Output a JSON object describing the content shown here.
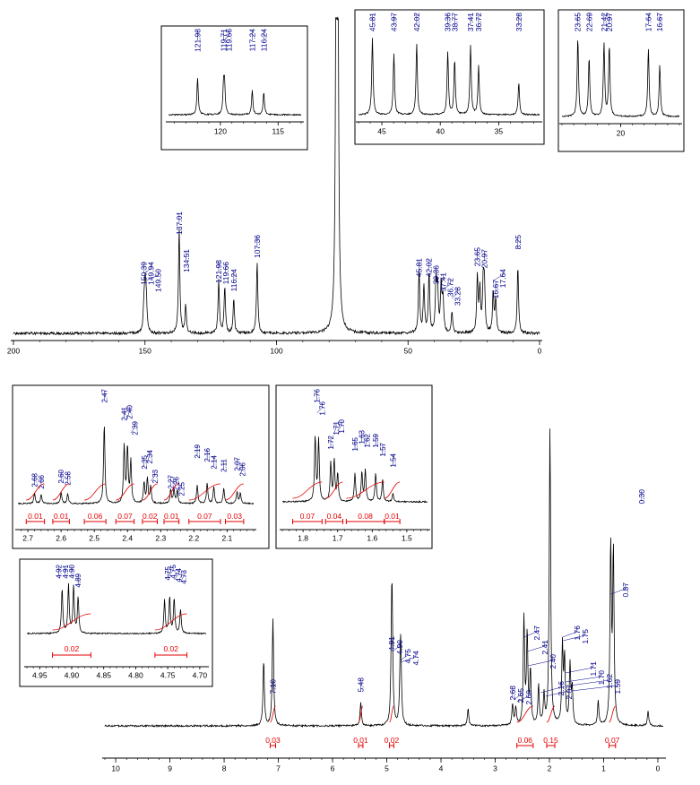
{
  "colors": {
    "spectrum": "#000000",
    "peak_label": "#00008B",
    "integral": "#E60000",
    "frame": "#000000"
  },
  "chart_data": [
    {
      "id": "c13_main",
      "type": "line",
      "xlim": [
        200,
        0
      ],
      "xticks": [
        200,
        150,
        100,
        50,
        0
      ],
      "peak_labels": [
        "150.39",
        "149.94",
        "149.50",
        "137.01",
        "134.51",
        "121.98",
        "119.66",
        "116.24",
        "107.36",
        "45.81",
        "42.02",
        "39.36",
        "37.41",
        "36.72",
        "33.28",
        "23.65",
        "20.97",
        "16.67",
        "17.64",
        "8.25"
      ],
      "peaks": [
        {
          "x": 150.39,
          "h": 0.08
        },
        {
          "x": 149.94,
          "h": 0.14
        },
        {
          "x": 149.5,
          "h": 0.1
        },
        {
          "x": 137.01,
          "h": 0.34
        },
        {
          "x": 134.51,
          "h": 0.09
        },
        {
          "x": 121.98,
          "h": 0.17
        },
        {
          "x": 119.66,
          "h": 0.15
        },
        {
          "x": 116.24,
          "h": 0.11
        },
        {
          "x": 107.36,
          "h": 0.23
        },
        {
          "x": 77.3,
          "h": 1.0
        },
        {
          "x": 77.0,
          "h": 1.0
        },
        {
          "x": 76.7,
          "h": 1.0
        },
        {
          "x": 45.81,
          "h": 0.2
        },
        {
          "x": 43.97,
          "h": 0.15
        },
        {
          "x": 42.02,
          "h": 0.19
        },
        {
          "x": 39.36,
          "h": 0.16
        },
        {
          "x": 38.77,
          "h": 0.14
        },
        {
          "x": 37.41,
          "h": 0.15
        },
        {
          "x": 36.72,
          "h": 0.11
        },
        {
          "x": 33.28,
          "h": 0.07
        },
        {
          "x": 23.65,
          "h": 0.18
        },
        {
          "x": 22.69,
          "h": 0.14
        },
        {
          "x": 21.42,
          "h": 0.15
        },
        {
          "x": 20.97,
          "h": 0.15
        },
        {
          "x": 17.64,
          "h": 0.13
        },
        {
          "x": 16.67,
          "h": 0.11
        },
        {
          "x": 8.25,
          "h": 0.22
        }
      ]
    },
    {
      "id": "c13_inset_a",
      "type": "line",
      "xlim": [
        124.5,
        113
      ],
      "xticks": [
        120,
        115
      ],
      "peak_labels": [
        "121.98",
        "119.71",
        "119.66",
        "117.24",
        "116.24"
      ],
      "peaks": [
        {
          "x": 121.98,
          "h": 0.95
        },
        {
          "x": 119.71,
          "h": 0.75
        },
        {
          "x": 119.66,
          "h": 0.8
        },
        {
          "x": 117.24,
          "h": 0.62
        },
        {
          "x": 116.24,
          "h": 0.58
        }
      ]
    },
    {
      "id": "c13_inset_b",
      "type": "line",
      "xlim": [
        47,
        31.5
      ],
      "xticks": [
        45,
        40,
        35
      ],
      "peak_labels": [
        "45.81",
        "43.97",
        "42.02",
        "39.36",
        "38.77",
        "37.41",
        "36.72",
        "33.28"
      ],
      "peaks": [
        {
          "x": 45.81,
          "h": 0.95
        },
        {
          "x": 43.97,
          "h": 0.75
        },
        {
          "x": 42.02,
          "h": 0.88
        },
        {
          "x": 39.36,
          "h": 0.78
        },
        {
          "x": 38.77,
          "h": 0.68
        },
        {
          "x": 37.41,
          "h": 0.86
        },
        {
          "x": 36.72,
          "h": 0.6
        },
        {
          "x": 33.28,
          "h": 0.4
        }
      ]
    },
    {
      "id": "c13_inset_c",
      "type": "line",
      "xlim": [
        25,
        15
      ],
      "xticks": [
        20
      ],
      "peak_labels": [
        "23.65",
        "22.69",
        "21.42",
        "20.97",
        "17.64",
        "16.67"
      ],
      "peaks": [
        {
          "x": 23.65,
          "h": 0.95
        },
        {
          "x": 22.69,
          "h": 0.72
        },
        {
          "x": 21.42,
          "h": 0.88
        },
        {
          "x": 20.97,
          "h": 0.85
        },
        {
          "x": 17.64,
          "h": 0.82
        },
        {
          "x": 16.67,
          "h": 0.62
        }
      ]
    },
    {
      "id": "h1_main",
      "type": "line",
      "xlim": [
        10.2,
        -0.1
      ],
      "xticks": [
        10,
        9,
        8,
        7,
        6,
        5,
        4,
        3,
        2,
        1,
        0
      ],
      "peak_labels": [
        "7.10",
        "5.48",
        "4.91",
        "4.90",
        "4.75",
        "4.74",
        "2.68",
        "2.65",
        "2.60",
        "2.47",
        "2.41",
        "2.40",
        "2.16",
        "2.07",
        "1.76",
        "1.75",
        "1.71",
        "1.70",
        "1.62",
        "1.59",
        "0.87",
        "0.30"
      ],
      "integrals": [
        "0.03",
        "0.01",
        "0.02",
        "0.06",
        "0.15",
        "0.07"
      ],
      "peaks": [
        {
          "x": 7.27,
          "h": 0.22
        },
        {
          "x": 7.1,
          "h": 0.36
        },
        {
          "x": 5.48,
          "h": 0.08
        },
        {
          "x": 4.91,
          "h": 0.28
        },
        {
          "x": 4.9,
          "h": 0.27
        },
        {
          "x": 4.75,
          "h": 0.18
        },
        {
          "x": 4.74,
          "h": 0.16
        },
        {
          "x": 3.5,
          "h": 0.06
        },
        {
          "x": 2.68,
          "h": 0.07
        },
        {
          "x": 2.62,
          "h": 0.06
        },
        {
          "x": 2.47,
          "h": 0.36
        },
        {
          "x": 2.41,
          "h": 0.3
        },
        {
          "x": 2.35,
          "h": 0.18
        },
        {
          "x": 2.2,
          "h": 0.13
        },
        {
          "x": 2.1,
          "h": 0.1
        },
        {
          "x": 1.99,
          "h": 1.0
        },
        {
          "x": 1.76,
          "h": 0.26
        },
        {
          "x": 1.72,
          "h": 0.22
        },
        {
          "x": 1.62,
          "h": 0.2
        },
        {
          "x": 1.58,
          "h": 0.12
        },
        {
          "x": 1.1,
          "h": 0.08
        },
        {
          "x": 0.87,
          "h": 0.6
        },
        {
          "x": 0.82,
          "h": 0.58
        },
        {
          "x": 0.18,
          "h": 0.05
        }
      ]
    },
    {
      "id": "h1_inset_a",
      "type": "line",
      "xlim": [
        2.73,
        2.02
      ],
      "xticks": [
        2.7,
        2.6,
        2.5,
        2.4,
        2.3,
        2.2,
        2.1
      ],
      "peak_labels": [
        "2.68",
        "2.66",
        "2.60",
        "2.58",
        "2.47",
        "2.41",
        "2.40",
        "2.39",
        "2.35",
        "2.34",
        "2.33",
        "2.27",
        "2.26",
        "2.25",
        "2.19",
        "2.16",
        "2.14",
        "2.11",
        "2.07",
        "2.06"
      ],
      "integrals": [
        "0.01",
        "0.01",
        "0.06",
        "0.07",
        "0.02",
        "0.01",
        "0.07",
        "0.03"
      ],
      "peaks": [
        {
          "x": 2.68,
          "h": 0.12
        },
        {
          "x": 2.66,
          "h": 0.11
        },
        {
          "x": 2.6,
          "h": 0.13
        },
        {
          "x": 2.58,
          "h": 0.12
        },
        {
          "x": 2.47,
          "h": 0.95
        },
        {
          "x": 2.41,
          "h": 0.68
        },
        {
          "x": 2.4,
          "h": 0.66
        },
        {
          "x": 2.39,
          "h": 0.5
        },
        {
          "x": 2.35,
          "h": 0.25
        },
        {
          "x": 2.34,
          "h": 0.3
        },
        {
          "x": 2.33,
          "h": 0.2
        },
        {
          "x": 2.27,
          "h": 0.16
        },
        {
          "x": 2.26,
          "h": 0.17
        },
        {
          "x": 2.25,
          "h": 0.15
        },
        {
          "x": 2.19,
          "h": 0.22
        },
        {
          "x": 2.16,
          "h": 0.24
        },
        {
          "x": 2.14,
          "h": 0.2
        },
        {
          "x": 2.11,
          "h": 0.18
        },
        {
          "x": 2.07,
          "h": 0.14
        },
        {
          "x": 2.06,
          "h": 0.12
        }
      ]
    },
    {
      "id": "h1_inset_b",
      "type": "line",
      "xlim": [
        1.86,
        1.44
      ],
      "xticks": [
        1.8,
        1.7,
        1.6,
        1.5
      ],
      "peak_labels": [
        "1.76",
        "1.76",
        "1.72",
        "1.71",
        "1.70",
        "1.65",
        "1.63",
        "1.62",
        "1.59",
        "1.57",
        "1.54"
      ],
      "integrals": [
        "0.07",
        "0.04",
        "0.08",
        "0.01"
      ],
      "peaks": [
        {
          "x": 1.765,
          "h": 0.92
        },
        {
          "x": 1.755,
          "h": 0.88
        },
        {
          "x": 1.72,
          "h": 0.55
        },
        {
          "x": 1.71,
          "h": 0.58
        },
        {
          "x": 1.7,
          "h": 0.4
        },
        {
          "x": 1.65,
          "h": 0.4
        },
        {
          "x": 1.63,
          "h": 0.42
        },
        {
          "x": 1.62,
          "h": 0.44
        },
        {
          "x": 1.59,
          "h": 0.4
        },
        {
          "x": 1.57,
          "h": 0.32
        },
        {
          "x": 1.54,
          "h": 0.12
        }
      ]
    },
    {
      "id": "h1_inset_c",
      "type": "line",
      "xlim": [
        4.97,
        4.69
      ],
      "xticks": [
        4.95,
        4.9,
        4.85,
        4.8,
        4.75,
        4.7
      ],
      "peak_labels": [
        "4.92",
        "4.91",
        "4.90",
        "4.89",
        "4.75",
        "4.75",
        "4.74",
        "4.73"
      ],
      "integrals": [
        "0.02",
        "0.02"
      ],
      "peaks": [
        {
          "x": 4.915,
          "h": 0.75
        },
        {
          "x": 4.905,
          "h": 0.8
        },
        {
          "x": 4.897,
          "h": 0.78
        },
        {
          "x": 4.89,
          "h": 0.6
        },
        {
          "x": 4.755,
          "h": 0.55
        },
        {
          "x": 4.747,
          "h": 0.6
        },
        {
          "x": 4.74,
          "h": 0.58
        },
        {
          "x": 4.73,
          "h": 0.4
        }
      ]
    }
  ]
}
